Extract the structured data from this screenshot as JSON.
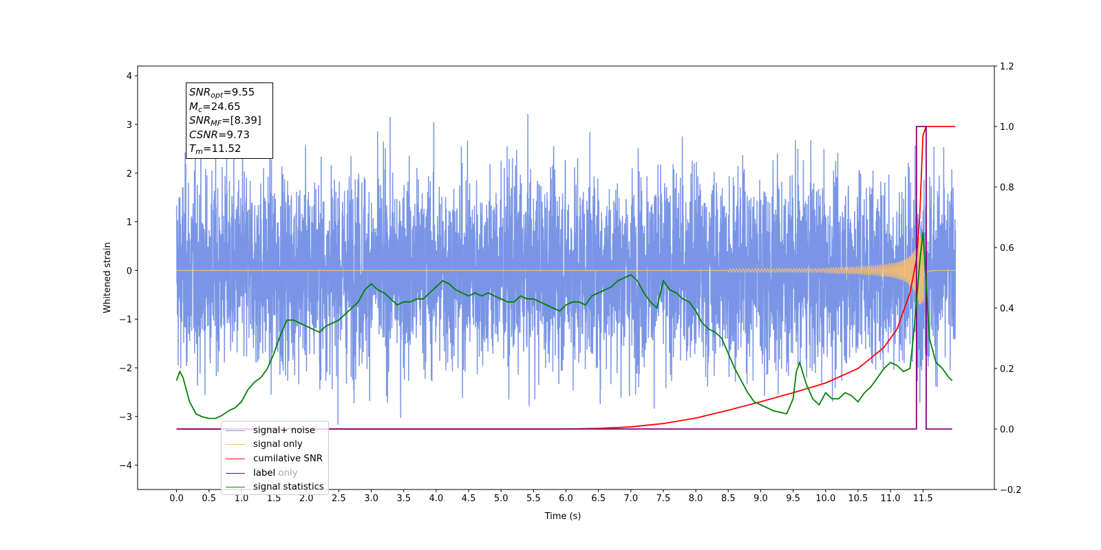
{
  "chart_data": {
    "type": "line",
    "title": "",
    "xlabel": "Time (s)",
    "ylabel": "Whitened strain",
    "y2label": "",
    "xlim": [
      -0.6,
      12.6
    ],
    "ylim": [
      -4.5,
      4.2
    ],
    "y2lim": [
      -0.2,
      1.2
    ],
    "x_ticks": [
      "0.0",
      "0.5",
      "1.0",
      "1.5",
      "2.0",
      "2.5",
      "3.0",
      "3.5",
      "4.0",
      "4.5",
      "5.0",
      "5.5",
      "6.0",
      "6.5",
      "7.0",
      "7.5",
      "8.0",
      "8.5",
      "9.0",
      "9.5",
      "10.0",
      "10.5",
      "11.0",
      "11.5"
    ],
    "y_ticks": [
      "−4",
      "−3",
      "−2",
      "−1",
      "0",
      "1",
      "2",
      "3",
      "4"
    ],
    "y2_ticks": [
      "−0.2",
      "0.0",
      "0.2",
      "0.4",
      "0.6",
      "0.8",
      "1.0",
      "1.2"
    ],
    "legend_position": "lower-left",
    "annotation": {
      "snr_opt": "=9.55",
      "mc": "=24.65",
      "snr_mf": "=[8.39]",
      "csnr": "=9.73",
      "tm": "=11.52"
    },
    "series": [
      {
        "name": "signal+ noise",
        "color": "#7a95e6",
        "axis": "left",
        "description_range": [
          0,
          12
        ],
        "envelope_min": [
          -1.7,
          -3.5
        ],
        "envelope_max": [
          1.7,
          3.8
        ]
      },
      {
        "name": "signal only",
        "color": "#ffbf66",
        "axis": "left",
        "chirp_time": 11.52,
        "amplitude_peak": 0.7
      },
      {
        "name": "cumilative SNR",
        "color": "#ff0000",
        "axis": "right",
        "x": [
          0,
          6.0,
          6.5,
          7.0,
          7.5,
          8.0,
          8.5,
          9.0,
          9.5,
          10.0,
          10.5,
          10.9,
          11.1,
          11.3,
          11.4,
          11.45,
          11.5,
          11.55,
          12.0
        ],
        "y": [
          0,
          0,
          0.002,
          0.007,
          0.018,
          0.036,
          0.062,
          0.09,
          0.12,
          0.152,
          0.2,
          0.27,
          0.33,
          0.45,
          0.56,
          0.7,
          0.97,
          1.0,
          1.0
        ]
      },
      {
        "name": "label",
        "color": "#800080",
        "axis": "right",
        "x": [
          0,
          11.4,
          11.4,
          11.55,
          11.55,
          11.95
        ],
        "y": [
          0,
          0,
          1,
          1,
          0,
          0
        ]
      },
      {
        "name": "signal statistics",
        "color": "#008000",
        "axis": "right",
        "x": [
          0,
          0.05,
          0.1,
          0.2,
          0.3,
          0.4,
          0.5,
          0.6,
          0.7,
          0.8,
          0.9,
          1.0,
          1.1,
          1.2,
          1.3,
          1.4,
          1.5,
          1.6,
          1.7,
          1.8,
          1.9,
          2.0,
          2.1,
          2.2,
          2.3,
          2.4,
          2.5,
          2.6,
          2.7,
          2.8,
          2.9,
          3.0,
          3.1,
          3.2,
          3.3,
          3.4,
          3.5,
          3.6,
          3.7,
          3.8,
          3.9,
          4.0,
          4.1,
          4.2,
          4.3,
          4.4,
          4.5,
          4.6,
          4.7,
          4.8,
          4.9,
          5.0,
          5.1,
          5.2,
          5.3,
          5.4,
          5.5,
          5.6,
          5.7,
          5.8,
          5.9,
          6.0,
          6.1,
          6.2,
          6.3,
          6.4,
          6.5,
          6.6,
          6.7,
          6.8,
          6.9,
          7.0,
          7.1,
          7.2,
          7.3,
          7.4,
          7.5,
          7.6,
          7.7,
          7.8,
          7.9,
          8.0,
          8.1,
          8.2,
          8.3,
          8.4,
          8.5,
          8.6,
          8.7,
          8.8,
          8.9,
          9.0,
          9.1,
          9.2,
          9.3,
          9.4,
          9.5,
          9.55,
          9.6,
          9.7,
          9.8,
          9.9,
          10.0,
          10.1,
          10.2,
          10.3,
          10.4,
          10.5,
          10.6,
          10.7,
          10.8,
          10.9,
          11.0,
          11.1,
          11.2,
          11.3,
          11.35,
          11.4,
          11.45,
          11.5,
          11.55,
          11.6,
          11.7,
          11.8,
          11.9,
          11.95
        ],
        "y": [
          0.16,
          0.19,
          0.17,
          0.09,
          0.05,
          0.04,
          0.035,
          0.035,
          0.045,
          0.06,
          0.07,
          0.09,
          0.13,
          0.155,
          0.17,
          0.2,
          0.25,
          0.31,
          0.36,
          0.36,
          0.35,
          0.34,
          0.33,
          0.32,
          0.34,
          0.35,
          0.36,
          0.38,
          0.4,
          0.42,
          0.46,
          0.48,
          0.46,
          0.45,
          0.43,
          0.41,
          0.42,
          0.42,
          0.43,
          0.43,
          0.45,
          0.47,
          0.49,
          0.48,
          0.46,
          0.45,
          0.44,
          0.45,
          0.44,
          0.45,
          0.44,
          0.43,
          0.42,
          0.42,
          0.44,
          0.43,
          0.43,
          0.42,
          0.41,
          0.4,
          0.39,
          0.41,
          0.42,
          0.42,
          0.41,
          0.44,
          0.45,
          0.46,
          0.47,
          0.49,
          0.5,
          0.51,
          0.49,
          0.45,
          0.42,
          0.4,
          0.49,
          0.46,
          0.45,
          0.43,
          0.42,
          0.39,
          0.35,
          0.33,
          0.32,
          0.3,
          0.25,
          0.2,
          0.16,
          0.12,
          0.09,
          0.08,
          0.07,
          0.06,
          0.055,
          0.05,
          0.1,
          0.19,
          0.22,
          0.15,
          0.1,
          0.08,
          0.12,
          0.1,
          0.1,
          0.12,
          0.11,
          0.09,
          0.12,
          0.14,
          0.17,
          0.2,
          0.22,
          0.21,
          0.19,
          0.2,
          0.3,
          0.42,
          0.55,
          0.65,
          0.48,
          0.3,
          0.22,
          0.2,
          0.17,
          0.16
        ]
      },
      {
        "name": "label only",
        "color": "#008000",
        "axis": "right",
        "legend_only": true
      }
    ]
  }
}
